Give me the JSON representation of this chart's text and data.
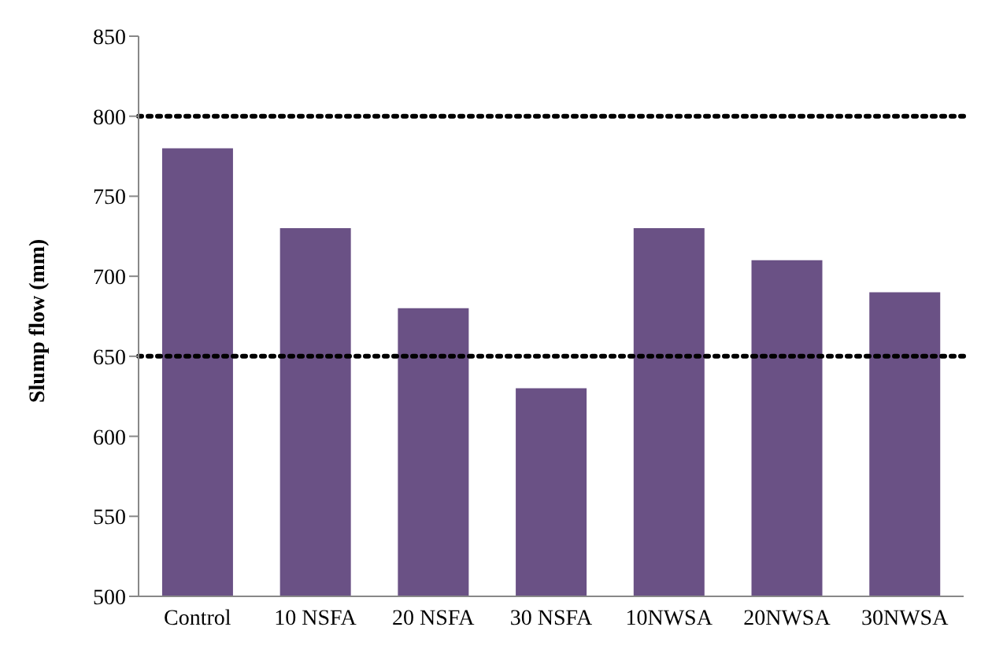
{
  "chart_data": {
    "type": "bar",
    "ylabel": "Slump flow (mm)",
    "categories": [
      "Control",
      "10 NSFA",
      "20 NSFA",
      "30 NSFA",
      "10NWSA",
      "20NWSA",
      "30NWSA"
    ],
    "values": [
      780,
      730,
      680,
      630,
      730,
      710,
      690
    ],
    "color": "#6a5185",
    "ylim": [
      500,
      850
    ],
    "yticks": [
      500,
      550,
      600,
      650,
      700,
      750,
      800,
      850
    ],
    "grid": false,
    "legend": false,
    "ref_lines": [
      {
        "axis": "y",
        "value": 800,
        "color": "#000000",
        "line_style": "dotted"
      },
      {
        "axis": "y",
        "value": 650,
        "color": "#000000",
        "line_style": "dotted"
      }
    ]
  }
}
